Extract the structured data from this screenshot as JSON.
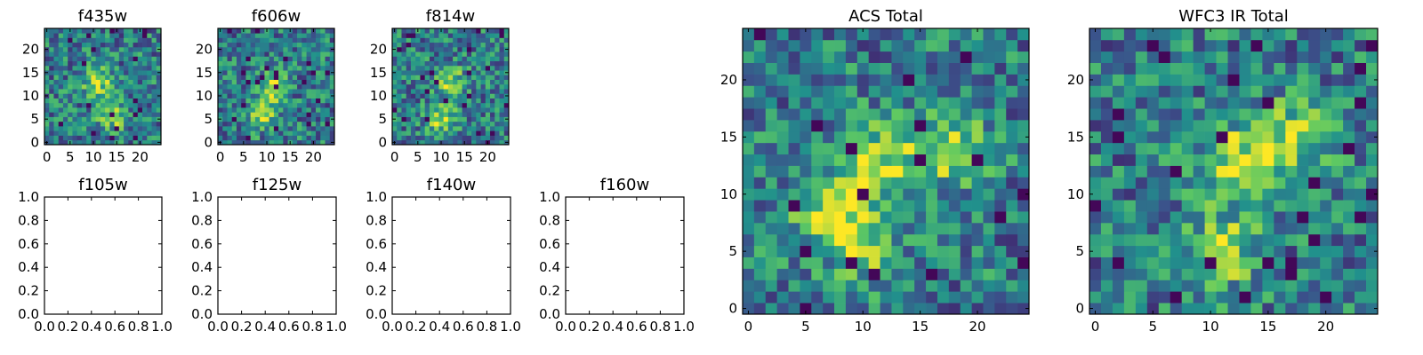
{
  "colormap": {
    "name": "viridis",
    "stops": [
      "#440154",
      "#3b528b",
      "#21918c",
      "#5ec962",
      "#fde725"
    ]
  },
  "chart_data": [
    {
      "type": "heatmap",
      "title": "f435w",
      "grid": false,
      "seed": 11,
      "xlim": [
        -0.5,
        24.5
      ],
      "ylim": [
        -0.5,
        24.5
      ],
      "xticks": [
        "0",
        "5",
        "10",
        "15",
        "20"
      ],
      "yticks": [
        "0",
        "5",
        "10",
        "15",
        "20"
      ],
      "cells": [
        25,
        25
      ],
      "value_range": [
        0,
        1
      ],
      "bright_centers": [
        [
          11,
          13
        ],
        [
          14,
          6
        ]
      ]
    },
    {
      "type": "heatmap",
      "title": "f606w",
      "grid": false,
      "seed": 23,
      "xlim": [
        -0.5,
        24.5
      ],
      "ylim": [
        -0.5,
        24.5
      ],
      "xticks": [
        "0",
        "5",
        "10",
        "15",
        "20"
      ],
      "yticks": [
        "0",
        "5",
        "10",
        "15",
        "20"
      ],
      "cells": [
        25,
        25
      ],
      "value_range": [
        0,
        1
      ],
      "bright_centers": [
        [
          11,
          12
        ],
        [
          9,
          6
        ]
      ]
    },
    {
      "type": "heatmap",
      "title": "f814w",
      "grid": false,
      "seed": 37,
      "xlim": [
        -0.5,
        24.5
      ],
      "ylim": [
        -0.5,
        24.5
      ],
      "xticks": [
        "0",
        "5",
        "10",
        "15",
        "20"
      ],
      "yticks": [
        "0",
        "5",
        "10",
        "15",
        "20"
      ],
      "cells": [
        25,
        25
      ],
      "value_range": [
        0,
        1
      ],
      "bright_centers": [
        [
          12,
          13
        ],
        [
          10,
          5
        ]
      ]
    },
    {
      "type": "empty",
      "title": "f105w",
      "grid": false,
      "xlim": [
        0,
        1
      ],
      "ylim": [
        0,
        1
      ],
      "xticks": [
        "0.0",
        "0.2",
        "0.4",
        "0.6",
        "0.8",
        "1.0"
      ],
      "yticks": [
        "0.0",
        "0.2",
        "0.4",
        "0.6",
        "0.8",
        "1.0"
      ]
    },
    {
      "type": "empty",
      "title": "f125w",
      "grid": false,
      "xlim": [
        0,
        1
      ],
      "ylim": [
        0,
        1
      ],
      "xticks": [
        "0.0",
        "0.2",
        "0.4",
        "0.6",
        "0.8",
        "1.0"
      ],
      "yticks": [
        "0.0",
        "0.2",
        "0.4",
        "0.6",
        "0.8",
        "1.0"
      ]
    },
    {
      "type": "empty",
      "title": "f140w",
      "grid": false,
      "xlim": [
        0,
        1
      ],
      "ylim": [
        0,
        1
      ],
      "xticks": [
        "0.0",
        "0.2",
        "0.4",
        "0.6",
        "0.8",
        "1.0"
      ],
      "yticks": [
        "0.0",
        "0.2",
        "0.4",
        "0.6",
        "0.8",
        "1.0"
      ]
    },
    {
      "type": "empty",
      "title": "f160w",
      "grid": false,
      "xlim": [
        0,
        1
      ],
      "ylim": [
        0,
        1
      ],
      "xticks": [
        "0.0",
        "0.2",
        "0.4",
        "0.6",
        "0.8",
        "1.0"
      ],
      "yticks": [
        "0.0",
        "0.2",
        "0.4",
        "0.6",
        "0.8",
        "1.0"
      ]
    },
    {
      "type": "heatmap",
      "title": "ACS Total",
      "grid": false,
      "seed": 53,
      "xlim": [
        -0.5,
        24.5
      ],
      "ylim": [
        -0.5,
        24.5
      ],
      "xticks": [
        "0",
        "5",
        "10",
        "15",
        "20"
      ],
      "yticks": [
        "0",
        "5",
        "10",
        "15",
        "20"
      ],
      "cells": [
        25,
        25
      ],
      "value_range": [
        0,
        1
      ],
      "bright_centers": [
        [
          12,
          13
        ],
        [
          18,
          14
        ],
        [
          10,
          6
        ],
        [
          7,
          9
        ]
      ]
    },
    {
      "type": "heatmap",
      "title": "WFC3 IR Total",
      "grid": false,
      "seed": 71,
      "xlim": [
        -0.5,
        24.5
      ],
      "ylim": [
        -0.5,
        24.5
      ],
      "xticks": [
        "0",
        "5",
        "10",
        "15",
        "20"
      ],
      "yticks": [
        "0",
        "5",
        "10",
        "15",
        "20"
      ],
      "cells": [
        25,
        25
      ],
      "value_range": [
        0,
        1
      ],
      "bright_centers": [
        [
          11,
          5
        ],
        [
          12,
          13
        ],
        [
          17,
          15
        ]
      ]
    }
  ]
}
